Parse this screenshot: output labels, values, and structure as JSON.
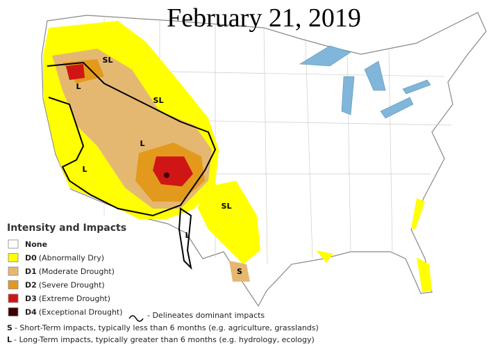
{
  "title": "February 21, 2019",
  "legend": {
    "title": "Intensity and Impacts",
    "items": [
      {
        "code": "None",
        "color": "#ffffff"
      },
      {
        "code": "D0",
        "label": "(Abnormally Dry)",
        "color": "#ffff00"
      },
      {
        "code": "D1",
        "label": "(Moderate Drought)",
        "color": "#e5b872"
      },
      {
        "code": "D2",
        "label": "(Severe Drought)",
        "color": "#e39a1c"
      },
      {
        "code": "D3",
        "label": "(Extreme Drought)",
        "color": "#d01515"
      },
      {
        "code": "D4",
        "label": "(Exceptional Drought)",
        "color": "#3c0000"
      }
    ],
    "line_note": "- Delineates dominant impacts"
  },
  "impact_notes": [
    {
      "code": "S",
      "text": "- Short-Term impacts, typically less than 6 months (e.g. agriculture, grasslands)"
    },
    {
      "code": "L",
      "text": "- Long-Term impacts, typically greater than 6 months (e.g. hydrology, ecology)"
    }
  ],
  "map_labels": [
    "SL",
    "L",
    "SL",
    "L",
    "L",
    "SL",
    "L",
    "S"
  ]
}
